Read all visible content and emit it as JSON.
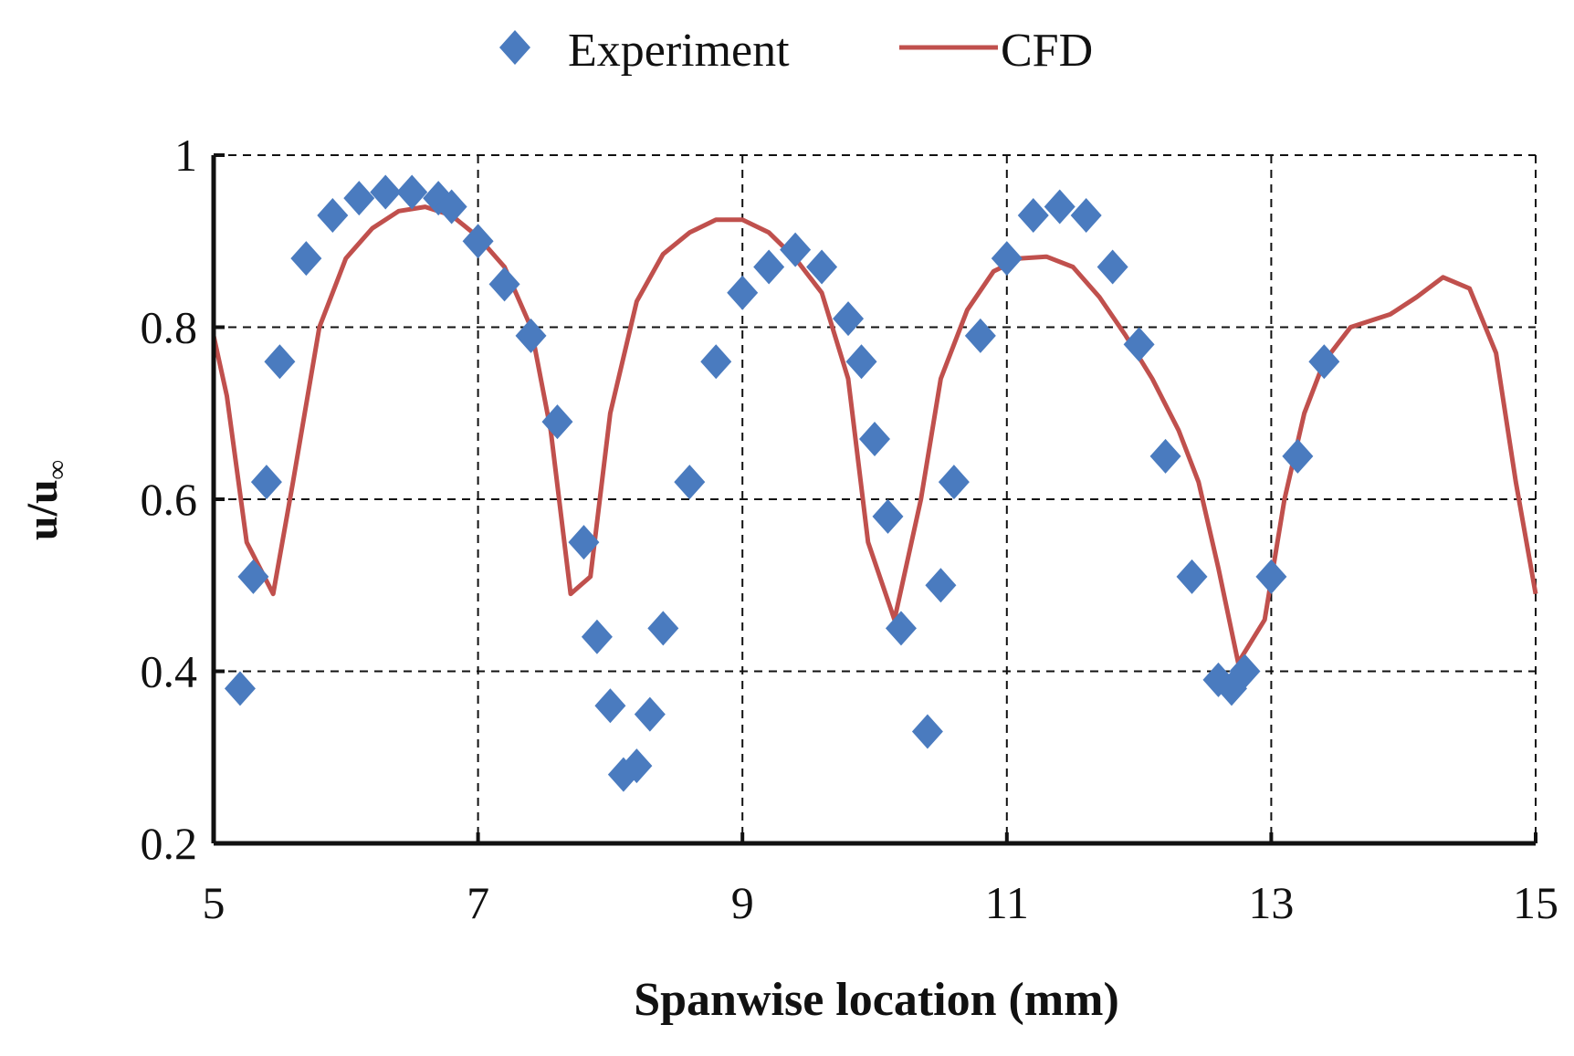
{
  "chart_data": {
    "type": "scatter+line",
    "title": "",
    "xlabel": "Spanwise location (mm)",
    "ylabel_main": "u/u",
    "ylabel_sub": "∞",
    "xlim": [
      5,
      15
    ],
    "ylim": [
      0.2,
      1.0
    ],
    "xticks": [
      5,
      7,
      9,
      11,
      13,
      15
    ],
    "yticks": [
      0.2,
      0.4,
      0.6,
      0.8,
      1.0
    ],
    "ytick_labels": [
      "0.2",
      "0.4",
      "0.6",
      "0.8",
      "1"
    ],
    "xtick_labels": [
      "5",
      "7",
      "9",
      "11",
      "13",
      "15"
    ],
    "grid": true,
    "legend_position": "top-center",
    "colors": {
      "experiment": "#4a7bbf",
      "cfd": "#c0504d"
    },
    "series": [
      {
        "name": "Experiment",
        "kind": "scatter",
        "marker": "diamond",
        "points": [
          [
            5.2,
            0.38
          ],
          [
            5.3,
            0.51
          ],
          [
            5.4,
            0.62
          ],
          [
            5.5,
            0.76
          ],
          [
            5.7,
            0.88
          ],
          [
            5.9,
            0.93
          ],
          [
            6.1,
            0.95
          ],
          [
            6.3,
            0.957
          ],
          [
            6.5,
            0.957
          ],
          [
            6.7,
            0.95
          ],
          [
            6.8,
            0.94
          ],
          [
            7.0,
            0.9
          ],
          [
            7.2,
            0.85
          ],
          [
            7.4,
            0.79
          ],
          [
            7.6,
            0.69
          ],
          [
            7.8,
            0.55
          ],
          [
            7.9,
            0.44
          ],
          [
            8.0,
            0.36
          ],
          [
            8.1,
            0.28
          ],
          [
            8.2,
            0.29
          ],
          [
            8.3,
            0.35
          ],
          [
            8.4,
            0.45
          ],
          [
            8.6,
            0.62
          ],
          [
            8.8,
            0.76
          ],
          [
            9.0,
            0.84
          ],
          [
            9.2,
            0.87
          ],
          [
            9.4,
            0.89
          ],
          [
            9.6,
            0.87
          ],
          [
            9.8,
            0.81
          ],
          [
            9.9,
            0.76
          ],
          [
            10.0,
            0.67
          ],
          [
            10.1,
            0.58
          ],
          [
            10.2,
            0.45
          ],
          [
            10.4,
            0.33
          ],
          [
            10.5,
            0.5
          ],
          [
            10.6,
            0.62
          ],
          [
            10.8,
            0.79
          ],
          [
            11.0,
            0.88
          ],
          [
            11.2,
            0.93
          ],
          [
            11.4,
            0.94
          ],
          [
            11.6,
            0.93
          ],
          [
            11.8,
            0.87
          ],
          [
            12.0,
            0.78
          ],
          [
            12.2,
            0.65
          ],
          [
            12.4,
            0.51
          ],
          [
            12.6,
            0.39
          ],
          [
            12.7,
            0.38
          ],
          [
            12.8,
            0.4
          ],
          [
            13.0,
            0.51
          ],
          [
            13.2,
            0.65
          ],
          [
            13.4,
            0.76
          ]
        ]
      },
      {
        "name": "CFD",
        "kind": "line",
        "points": [
          [
            5.0,
            0.79
          ],
          [
            5.1,
            0.72
          ],
          [
            5.25,
            0.55
          ],
          [
            5.45,
            0.49
          ],
          [
            5.6,
            0.62
          ],
          [
            5.8,
            0.8
          ],
          [
            6.0,
            0.88
          ],
          [
            6.2,
            0.915
          ],
          [
            6.4,
            0.935
          ],
          [
            6.6,
            0.94
          ],
          [
            6.8,
            0.93
          ],
          [
            7.0,
            0.905
          ],
          [
            7.2,
            0.87
          ],
          [
            7.4,
            0.8
          ],
          [
            7.55,
            0.68
          ],
          [
            7.7,
            0.49
          ],
          [
            7.85,
            0.51
          ],
          [
            8.0,
            0.7
          ],
          [
            8.2,
            0.83
          ],
          [
            8.4,
            0.885
          ],
          [
            8.6,
            0.91
          ],
          [
            8.8,
            0.925
          ],
          [
            9.0,
            0.925
          ],
          [
            9.2,
            0.91
          ],
          [
            9.4,
            0.88
          ],
          [
            9.6,
            0.84
          ],
          [
            9.8,
            0.74
          ],
          [
            9.95,
            0.55
          ],
          [
            10.15,
            0.46
          ],
          [
            10.35,
            0.6
          ],
          [
            10.5,
            0.74
          ],
          [
            10.7,
            0.82
          ],
          [
            10.9,
            0.865
          ],
          [
            11.1,
            0.88
          ],
          [
            11.3,
            0.882
          ],
          [
            11.5,
            0.87
          ],
          [
            11.7,
            0.835
          ],
          [
            11.9,
            0.79
          ],
          [
            12.1,
            0.74
          ],
          [
            12.3,
            0.68
          ],
          [
            12.45,
            0.62
          ],
          [
            12.6,
            0.52
          ],
          [
            12.75,
            0.41
          ],
          [
            12.95,
            0.46
          ],
          [
            13.1,
            0.6
          ],
          [
            13.25,
            0.7
          ],
          [
            13.4,
            0.76
          ],
          [
            13.6,
            0.8
          ],
          [
            13.9,
            0.815
          ],
          [
            14.1,
            0.835
          ],
          [
            14.3,
            0.858
          ],
          [
            14.5,
            0.845
          ],
          [
            14.7,
            0.77
          ],
          [
            14.85,
            0.62
          ],
          [
            15.0,
            0.49
          ]
        ]
      }
    ]
  }
}
